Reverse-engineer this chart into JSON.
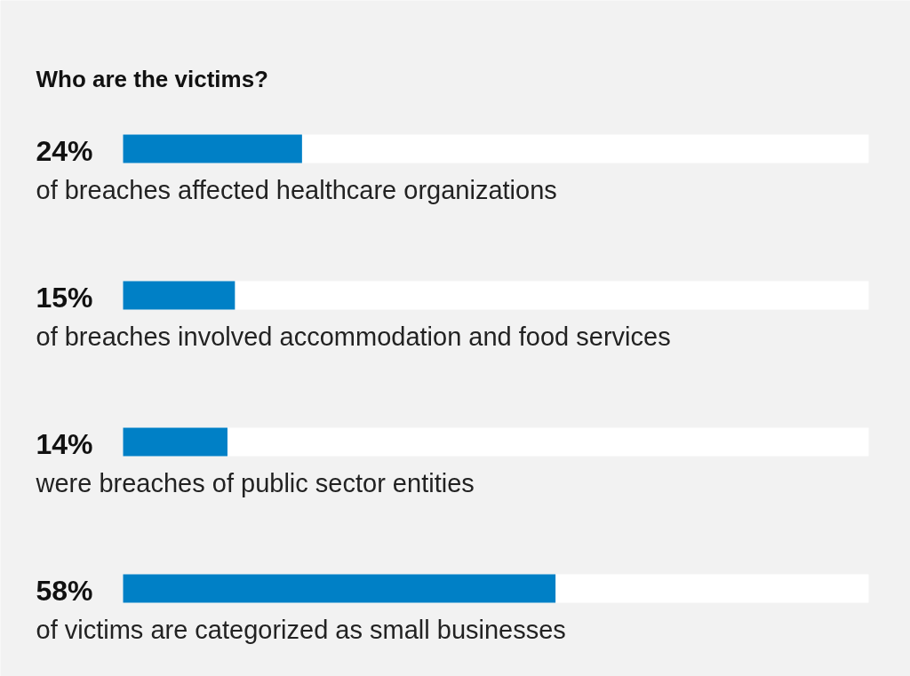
{
  "chart_data": {
    "type": "bar",
    "orientation": "horizontal",
    "title": "Who are the victims?",
    "categories": [
      "of breaches affected healthcare organizations",
      "of breaches involved accommodation and food services",
      "were breaches of public sector entities",
      "of victims are categorized as small businesses"
    ],
    "values": [
      24,
      15,
      14,
      58
    ],
    "value_labels": [
      "24%",
      "15%",
      "14%",
      "58%"
    ],
    "color": "#0080c6",
    "xlim": [
      0,
      100
    ],
    "tick_labels": "y",
    "grid": false
  }
}
